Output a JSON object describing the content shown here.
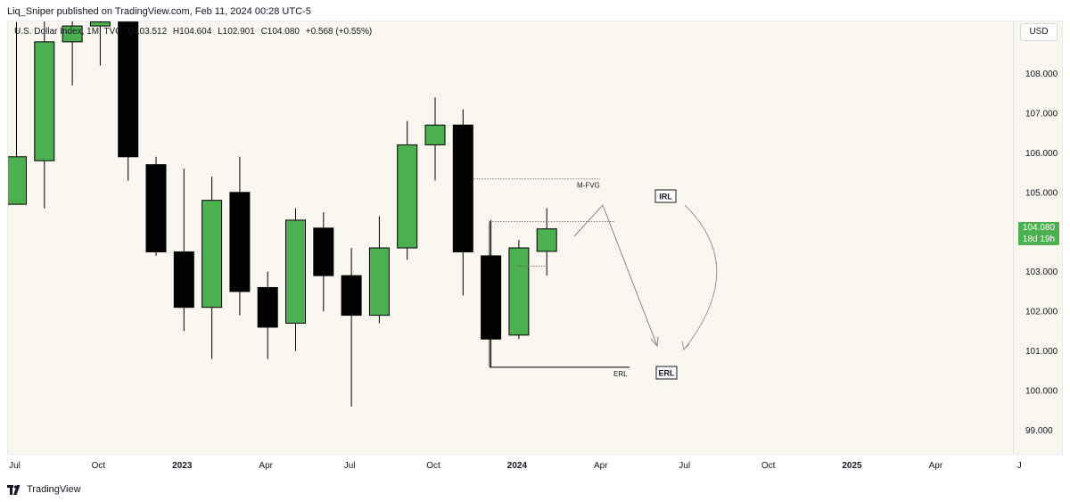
{
  "header": {
    "published_text": "Liq_Sniper published on TradingView.com, Feb 11, 2024 00:28 UTC-5"
  },
  "symbol": {
    "name": "U.S. Dollar Index, 1M, TVC",
    "open": "O103.512",
    "high": "H104.604",
    "low": "L102.901",
    "close": "C104.080",
    "change": "+0.568 (+0.55%)"
  },
  "currency_button": "USD",
  "price_badge": {
    "price": "104.080",
    "countdown": "18d 19h",
    "color": "#4caf50"
  },
  "footer": {
    "brand": "TradingView"
  },
  "colors": {
    "up": "#4caf50",
    "down": "#000000",
    "background": "#faf7f0"
  },
  "chart_data": {
    "type": "candlestick",
    "interval": "1M",
    "ylim": [
      98.55,
      109.5
    ],
    "y_ticks": [
      99,
      100,
      101,
      102,
      103,
      104,
      105,
      106,
      107,
      108
    ],
    "y_tick_labels": [
      "99.000",
      "100.000",
      "101.000",
      "102.000",
      "103.000",
      "104.000",
      "105.000",
      "106.000",
      "107.000",
      "108.000"
    ],
    "x_tick_labels": [
      {
        "label": "Jul",
        "month": "2022-07",
        "bold": false
      },
      {
        "label": "Oct",
        "month": "2022-10",
        "bold": false
      },
      {
        "label": "2023",
        "month": "2023-01",
        "bold": true
      },
      {
        "label": "Apr",
        "month": "2023-04",
        "bold": false
      },
      {
        "label": "Jul",
        "month": "2023-07",
        "bold": false
      },
      {
        "label": "Oct",
        "month": "2023-10",
        "bold": false
      },
      {
        "label": "2024",
        "month": "2024-01",
        "bold": true
      },
      {
        "label": "Apr",
        "month": "2024-04",
        "bold": false
      },
      {
        "label": "Jul",
        "month": "2024-07",
        "bold": false
      },
      {
        "label": "Oct",
        "month": "2024-10",
        "bold": false
      },
      {
        "label": "2025",
        "month": "2025-01",
        "bold": true
      },
      {
        "label": "Apr",
        "month": "2025-04",
        "bold": false
      },
      {
        "label": "J",
        "month": "2025-07",
        "bold": false
      }
    ],
    "candles": [
      {
        "month": "2022-07",
        "open": 104.7,
        "high": 109.3,
        "low": 104.7,
        "close": 105.9
      },
      {
        "month": "2022-08",
        "open": 105.8,
        "high": 109.6,
        "low": 104.6,
        "close": 108.8
      },
      {
        "month": "2022-09",
        "open": 108.8,
        "high": 109.5,
        "low": 107.7,
        "close": 109.2
      },
      {
        "month": "2022-10",
        "open": 109.2,
        "high": 109.4,
        "low": 108.2,
        "close": 109.3
      },
      {
        "month": "2022-11",
        "open": 109.3,
        "high": 109.5,
        "low": 105.3,
        "close": 105.9
      },
      {
        "month": "2022-12",
        "open": 105.7,
        "high": 105.9,
        "low": 103.4,
        "close": 103.5
      },
      {
        "month": "2023-01",
        "open": 103.5,
        "high": 105.6,
        "low": 101.5,
        "close": 102.1
      },
      {
        "month": "2023-02",
        "open": 102.1,
        "high": 105.4,
        "low": 100.8,
        "close": 104.8
      },
      {
        "month": "2023-03",
        "open": 105.0,
        "high": 105.9,
        "low": 101.9,
        "close": 102.5
      },
      {
        "month": "2023-04",
        "open": 102.6,
        "high": 103.0,
        "low": 100.8,
        "close": 101.6
      },
      {
        "month": "2023-05",
        "open": 101.7,
        "high": 104.6,
        "low": 101.0,
        "close": 104.3
      },
      {
        "month": "2023-06",
        "open": 104.1,
        "high": 104.5,
        "low": 102.0,
        "close": 102.9
      },
      {
        "month": "2023-07",
        "open": 102.9,
        "high": 103.6,
        "low": 99.6,
        "close": 101.9
      },
      {
        "month": "2023-08",
        "open": 101.9,
        "high": 104.4,
        "low": 101.7,
        "close": 103.6
      },
      {
        "month": "2023-09",
        "open": 103.6,
        "high": 106.8,
        "low": 103.3,
        "close": 106.2
      },
      {
        "month": "2023-10",
        "open": 106.2,
        "high": 107.4,
        "low": 105.3,
        "close": 106.7
      },
      {
        "month": "2023-11",
        "open": 106.7,
        "high": 107.1,
        "low": 102.4,
        "close": 103.5
      },
      {
        "month": "2023-12",
        "open": 103.4,
        "high": 104.3,
        "low": 100.6,
        "close": 101.3
      },
      {
        "month": "2024-01",
        "open": 101.4,
        "high": 103.8,
        "low": 101.3,
        "close": 103.6
      },
      {
        "month": "2024-02",
        "open": 103.512,
        "high": 104.604,
        "low": 102.901,
        "close": 104.08
      }
    ],
    "last_price": 104.08,
    "annotations": {
      "m_fvg": {
        "label": "M-FVG",
        "price": 105.35,
        "from": "2023-11",
        "to": "2024-04"
      },
      "irl_label": "IRL",
      "erl": {
        "label": "ERL",
        "price": 100.6,
        "from": "2023-12",
        "to": "2024-06"
      },
      "erl_box_label": "ERL"
    }
  }
}
